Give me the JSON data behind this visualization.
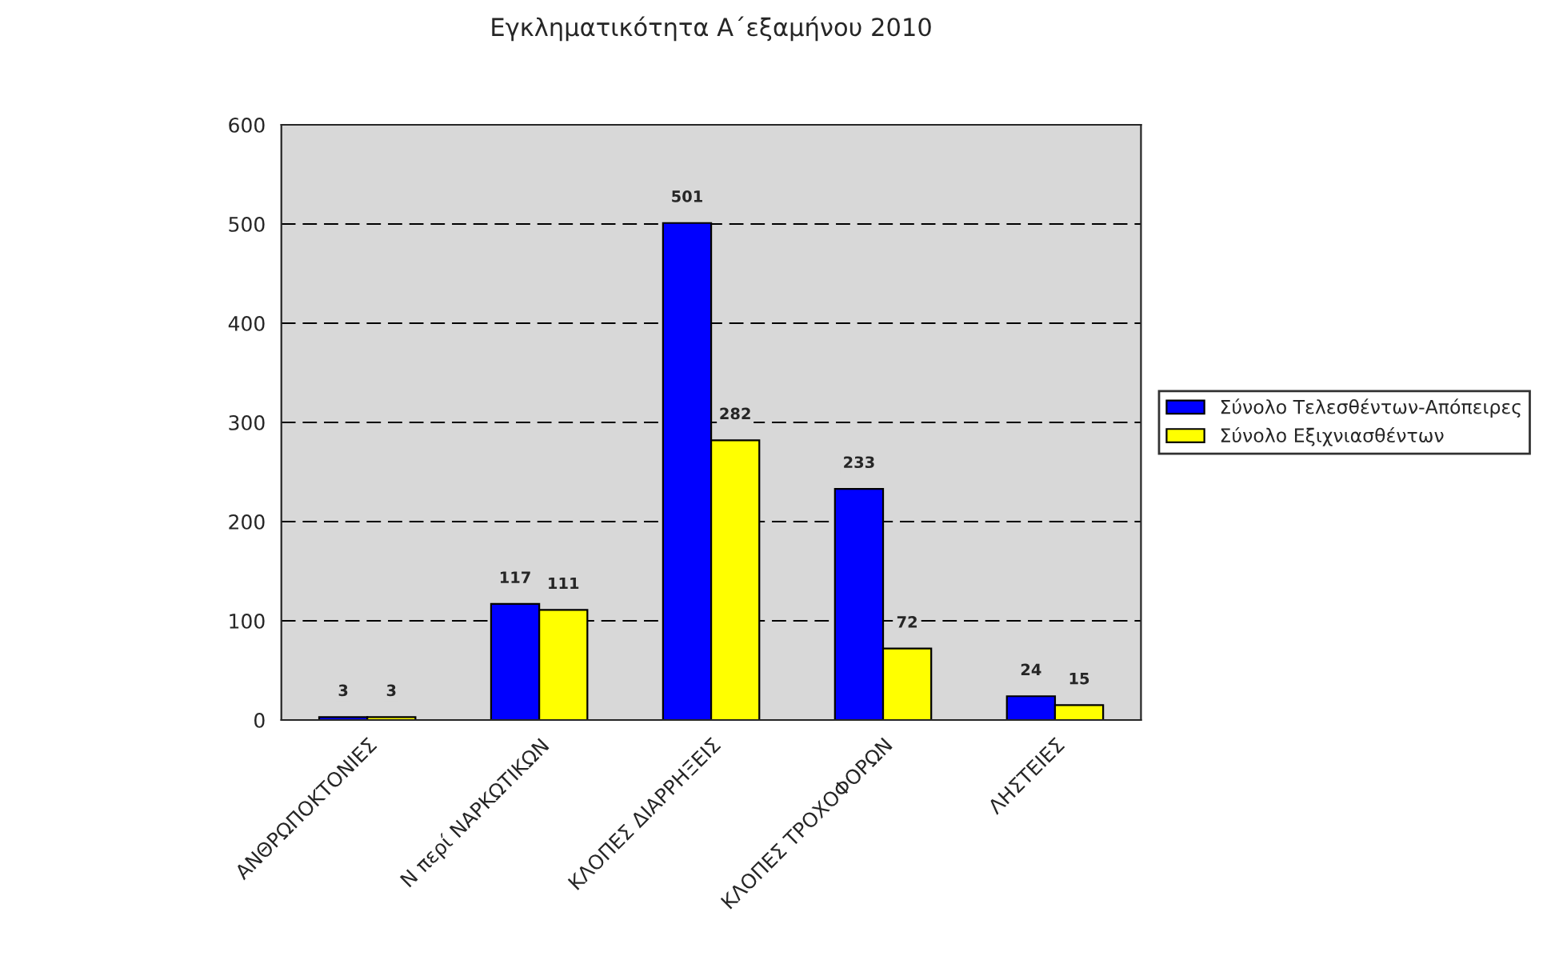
{
  "chart_data": {
    "type": "bar",
    "title": "Εγκληματικότητα Α΄εξαμήνου 2010",
    "categories": [
      "ΑΝΘΡΩΠΟΚΤΟΝΙΕΣ",
      "Ν περί ΝΑΡΚΩΤΙΚΩΝ",
      "ΚΛΟΠΕΣ ΔΙΑΡΡΗΞΕΙΣ",
      "ΚΛΟΠΕΣ ΤΡΟΧΟΦΟΡΩΝ",
      "ΛΗΣΤΕΙΕΣ"
    ],
    "series": [
      {
        "name": "Σύνολο Τελεσθέντων-Απόπειρες",
        "color": "#0000ff",
        "values": [
          3,
          117,
          501,
          233,
          24
        ]
      },
      {
        "name": "Σύνολο Εξιχνιασθέντων",
        "color": "#ffff00",
        "values": [
          3,
          111,
          282,
          72,
          15
        ]
      }
    ],
    "ylim": [
      0,
      600
    ],
    "yticks": [
      0,
      100,
      200,
      300,
      400,
      500,
      600
    ],
    "grid": "y",
    "line_style": "dashed",
    "data_labels": true,
    "legend": "right"
  }
}
